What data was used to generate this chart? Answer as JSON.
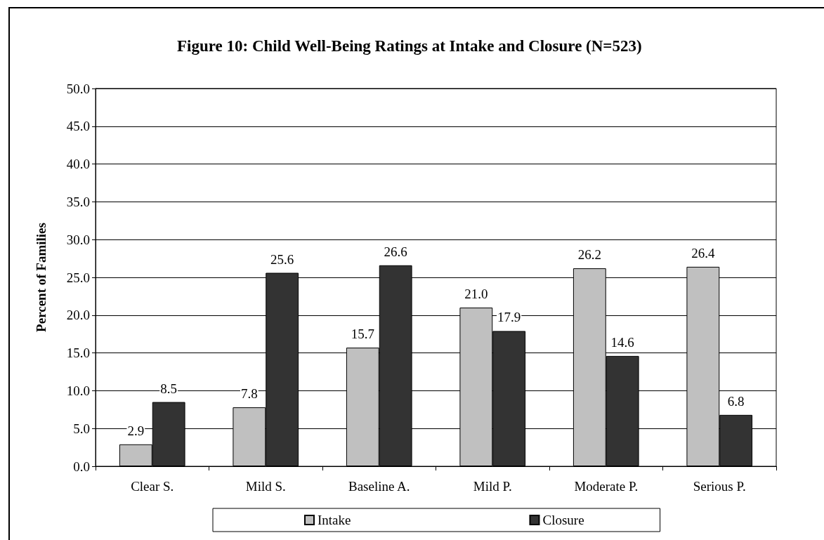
{
  "chart_data": {
    "type": "bar",
    "title": "Figure 10: Child Well-Being Ratings at Intake and Closure (N=523)",
    "ylabel": "Percent of Families",
    "categories": [
      "Clear S.",
      "Mild S.",
      "Baseline A.",
      "Mild P.",
      "Moderate P.",
      "Serious P."
    ],
    "series": [
      {
        "name": "Intake",
        "color": "#c0c0c0",
        "values": [
          2.9,
          7.8,
          15.7,
          21.0,
          26.2,
          26.4
        ],
        "value_labels": [
          "2.9",
          "7.8",
          "15.7",
          "21.0",
          "26.2",
          "26.4"
        ]
      },
      {
        "name": "Closure",
        "color": "#333333",
        "values": [
          8.5,
          25.6,
          26.6,
          17.9,
          14.6,
          6.8
        ],
        "value_labels": [
          "8.5",
          "25.6",
          "26.6",
          "17.9",
          "14.6",
          "6.8"
        ]
      }
    ],
    "ylim": [
      0,
      50
    ],
    "yticks": [
      {
        "value": 0,
        "label": "0.0"
      },
      {
        "value": 5,
        "label": "5.0"
      },
      {
        "value": 10,
        "label": "10.0"
      },
      {
        "value": 15,
        "label": "15.0"
      },
      {
        "value": 20,
        "label": "20.0"
      },
      {
        "value": 25,
        "label": "25.0"
      },
      {
        "value": 30,
        "label": "30.0"
      },
      {
        "value": 35,
        "label": "35.0"
      },
      {
        "value": 40,
        "label": "40.0"
      },
      {
        "value": 45,
        "label": "45.0"
      },
      {
        "value": 50,
        "label": "50.0"
      }
    ],
    "grid": "y",
    "legend": "bottom"
  }
}
